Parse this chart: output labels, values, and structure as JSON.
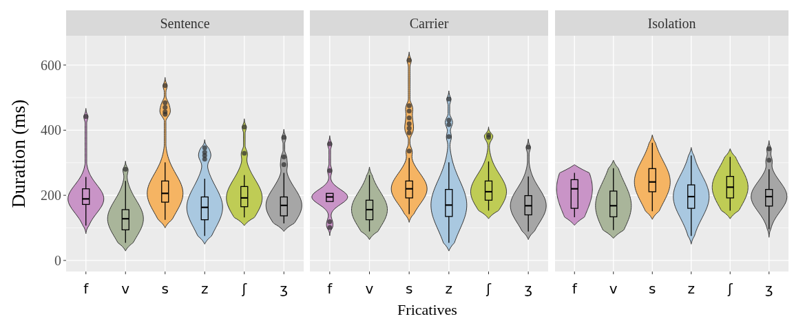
{
  "chart_data": [
    {
      "type": "box",
      "title": "Sentence",
      "ylabel": "Duration (ms)",
      "categories": [
        "f",
        "v",
        "s",
        "z",
        "ʃ",
        "ʒ"
      ],
      "colors": [
        "#c994c7",
        "#a9b59a",
        "#f5b463",
        "#a9c8e0",
        "#bfcc55",
        "#a6a6a6"
      ],
      "ylim": [
        -34,
        690
      ],
      "yticks": [
        0,
        200,
        400,
        600
      ],
      "grid": true,
      "boxes": [
        {
          "low": 107,
          "q1": 172,
          "median": 189,
          "q3": 220,
          "high": 256,
          "outliers": [
            442
          ]
        },
        {
          "low": 54,
          "q1": 94,
          "median": 128,
          "q3": 156,
          "high": 244,
          "outliers": [
            280
          ]
        },
        {
          "low": 125,
          "q1": 179,
          "median": 206,
          "q3": 244,
          "high": 301,
          "outliers": [
            449,
            456,
            470,
            484,
            537
          ]
        },
        {
          "low": 75,
          "q1": 125,
          "median": 163,
          "q3": 195,
          "high": 251,
          "outliers": [
            311,
            322,
            332,
            346
          ]
        },
        {
          "low": 132,
          "q1": 165,
          "median": 192,
          "q3": 227,
          "high": 262,
          "outliers": [
            329,
            410
          ]
        },
        {
          "low": 114,
          "q1": 137,
          "median": 169,
          "q3": 195,
          "high": 269,
          "outliers": [
            294,
            318,
            378
          ]
        }
      ]
    },
    {
      "type": "box",
      "title": "Carrier",
      "xlabel": "Fricatives",
      "categories": [
        "f",
        "v",
        "s",
        "z",
        "ʃ",
        "ʒ"
      ],
      "colors": [
        "#c994c7",
        "#a9b59a",
        "#f5b463",
        "#a9c8e0",
        "#bfcc55",
        "#a6a6a6"
      ],
      "ylim": [
        -34,
        690
      ],
      "yticks": [
        0,
        200,
        400,
        600
      ],
      "grid": true,
      "tick_labels": "x",
      "boxes": [
        {
          "low": 181,
          "q1": 181,
          "median": 195,
          "q3": 206,
          "high": 206,
          "outliers": [
            101,
            119,
            276,
            358
          ]
        },
        {
          "low": 89,
          "q1": 125,
          "median": 156,
          "q3": 185,
          "high": 262
        },
        {
          "low": 142,
          "q1": 192,
          "median": 220,
          "q3": 244,
          "high": 315,
          "outliers": [
            336,
            392,
            406,
            420,
            438,
            459,
            475,
            615
          ]
        },
        {
          "low": 54,
          "q1": 135,
          "median": 170,
          "q3": 218,
          "high": 301,
          "outliers": [
            380,
            417,
            431,
            496
          ]
        },
        {
          "low": 153,
          "q1": 185,
          "median": 211,
          "q3": 244,
          "high": 304,
          "outliers": [
            378,
            385
          ]
        },
        {
          "low": 89,
          "q1": 140,
          "median": 168,
          "q3": 199,
          "high": 258,
          "outliers": [
            348
          ]
        }
      ]
    },
    {
      "type": "box",
      "title": "Isolation",
      "categories": [
        "f",
        "v",
        "s",
        "z",
        "ʃ",
        "ʒ"
      ],
      "colors": [
        "#c994c7",
        "#a9b59a",
        "#f5b463",
        "#a9c8e0",
        "#bfcc55",
        "#a6a6a6"
      ],
      "ylim": [
        -34,
        690
      ],
      "yticks": [
        0,
        200,
        400,
        600
      ],
      "grid": true,
      "tick_labels": "x",
      "boxes": [
        {
          "low": 133,
          "q1": 160,
          "median": 220,
          "q3": 248,
          "high": 269
        },
        {
          "low": 93,
          "q1": 134,
          "median": 168,
          "q3": 213,
          "high": 283
        },
        {
          "low": 151,
          "q1": 211,
          "median": 241,
          "q3": 282,
          "high": 361
        },
        {
          "low": 75,
          "q1": 160,
          "median": 196,
          "q3": 232,
          "high": 322
        },
        {
          "low": 153,
          "q1": 192,
          "median": 225,
          "q3": 258,
          "high": 318
        },
        {
          "low": 96,
          "q1": 167,
          "median": 196,
          "q3": 218,
          "high": 280,
          "outliers": [
            308,
            343
          ]
        }
      ]
    }
  ]
}
